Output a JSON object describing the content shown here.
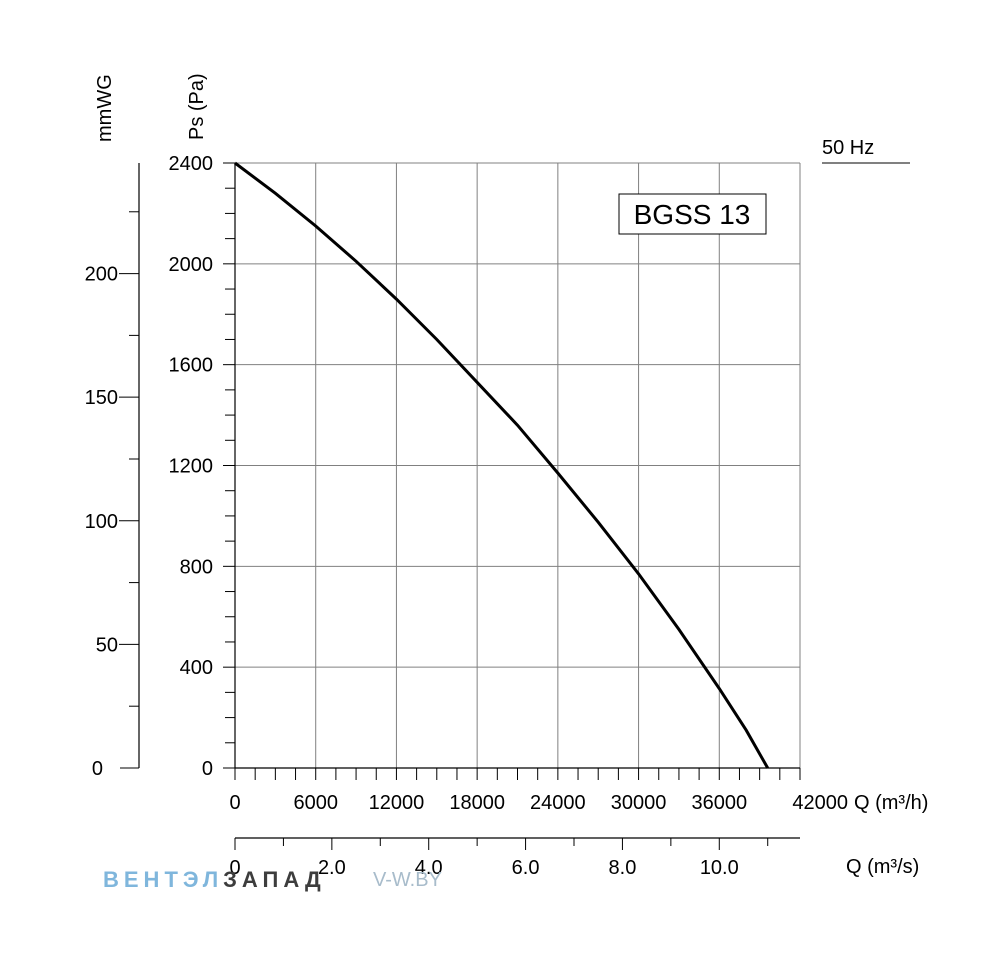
{
  "chart_data": {
    "type": "line",
    "model_label": "BGSS 13",
    "frequency_label": "50 Hz",
    "y_left_outer_label": "mmWG",
    "y_left_label": "Ps (Pa)",
    "x_label": "Q (m³/h)",
    "x2_label": "Q (m³/s)",
    "xlim": [
      0,
      42000
    ],
    "ylim": [
      0,
      2400
    ],
    "x_ticks": [
      "0",
      "6000",
      "12000",
      "18000",
      "24000",
      "30000",
      "36000",
      "42000"
    ],
    "y_ticks": [
      "0",
      "400",
      "800",
      "1200",
      "1600",
      "2000",
      "2400"
    ],
    "mmwg_ticks": [
      "0",
      "50",
      "100",
      "150",
      "200"
    ],
    "m3s_ticks": [
      "0",
      "2.0",
      "4.0",
      "6.0",
      "8.0",
      "10.0"
    ],
    "grid": true,
    "series": [
      {
        "x": [
          0,
          3000,
          6000,
          9000,
          12000,
          15000,
          18000,
          21000,
          24000,
          27000,
          30000,
          33000,
          36000,
          38000,
          39600
        ],
        "y": [
          2400,
          2280,
          2150,
          2010,
          1860,
          1700,
          1530,
          1360,
          1170,
          975,
          770,
          550,
          315,
          150,
          0
        ]
      }
    ]
  },
  "watermark": {
    "brand_part1": "ВЕНТЭЛ",
    "brand_part2": "ЗАПАД",
    "site": "V-W.BY",
    "color_part1": "#7fb6dc",
    "color_part2": "#3d3d3d",
    "color_site": "#a8bccb"
  }
}
